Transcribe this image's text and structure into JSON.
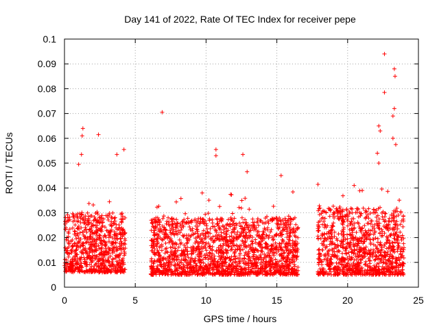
{
  "chart_data": {
    "type": "scatter",
    "title": "Day 141 of 2022, Rate Of TEC Index for receiver pepe",
    "xlabel": "GPS time / hours",
    "ylabel": "ROTI / TECUs",
    "xlim": [
      0,
      25
    ],
    "ylim": [
      0,
      0.1
    ],
    "xticks": [
      0,
      5,
      10,
      15,
      20,
      25
    ],
    "yticks": [
      0,
      0.01,
      0.02,
      0.03,
      0.04,
      0.05,
      0.06,
      0.07,
      0.08,
      0.09,
      0.1
    ],
    "x_tick_labels": [
      "0",
      "5",
      "10",
      "15",
      "20",
      "25"
    ],
    "y_tick_labels": [
      "0",
      "0.01",
      "0.02",
      "0.03",
      "0.04",
      "0.05",
      "0.06",
      "0.07",
      "0.08",
      "0.09",
      "0.1"
    ],
    "grid": true,
    "marker": "+",
    "color": "#ff0000",
    "series": [
      {
        "name": "ROTI",
        "segments": [
          {
            "x_start": 0.0,
            "x_end": 4.3,
            "baseline": [
              0.006,
              0.03
            ]
          },
          {
            "x_start": 6.1,
            "x_end": 16.5,
            "baseline": [
              0.005,
              0.028
            ]
          },
          {
            "x_start": 17.9,
            "x_end": 24.0,
            "baseline": [
              0.005,
              0.032
            ]
          }
        ],
        "notable_points": [
          {
            "x": 1.3,
            "y": 0.064
          },
          {
            "x": 1.25,
            "y": 0.061
          },
          {
            "x": 2.4,
            "y": 0.0615
          },
          {
            "x": 4.2,
            "y": 0.0555
          },
          {
            "x": 3.7,
            "y": 0.0535
          },
          {
            "x": 1.2,
            "y": 0.0535
          },
          {
            "x": 1.0,
            "y": 0.0495
          },
          {
            "x": 6.9,
            "y": 0.0705
          },
          {
            "x": 10.7,
            "y": 0.0555
          },
          {
            "x": 10.7,
            "y": 0.053
          },
          {
            "x": 12.6,
            "y": 0.0535
          },
          {
            "x": 12.9,
            "y": 0.0465
          },
          {
            "x": 15.3,
            "y": 0.045
          },
          {
            "x": 22.6,
            "y": 0.094
          },
          {
            "x": 23.3,
            "y": 0.088
          },
          {
            "x": 23.35,
            "y": 0.085
          },
          {
            "x": 22.6,
            "y": 0.0785
          },
          {
            "x": 23.3,
            "y": 0.072
          },
          {
            "x": 23.2,
            "y": 0.069
          },
          {
            "x": 22.2,
            "y": 0.065
          },
          {
            "x": 22.3,
            "y": 0.063
          },
          {
            "x": 23.2,
            "y": 0.06
          },
          {
            "x": 23.4,
            "y": 0.0575
          },
          {
            "x": 22.1,
            "y": 0.054
          },
          {
            "x": 22.2,
            "y": 0.05
          }
        ]
      }
    ]
  }
}
